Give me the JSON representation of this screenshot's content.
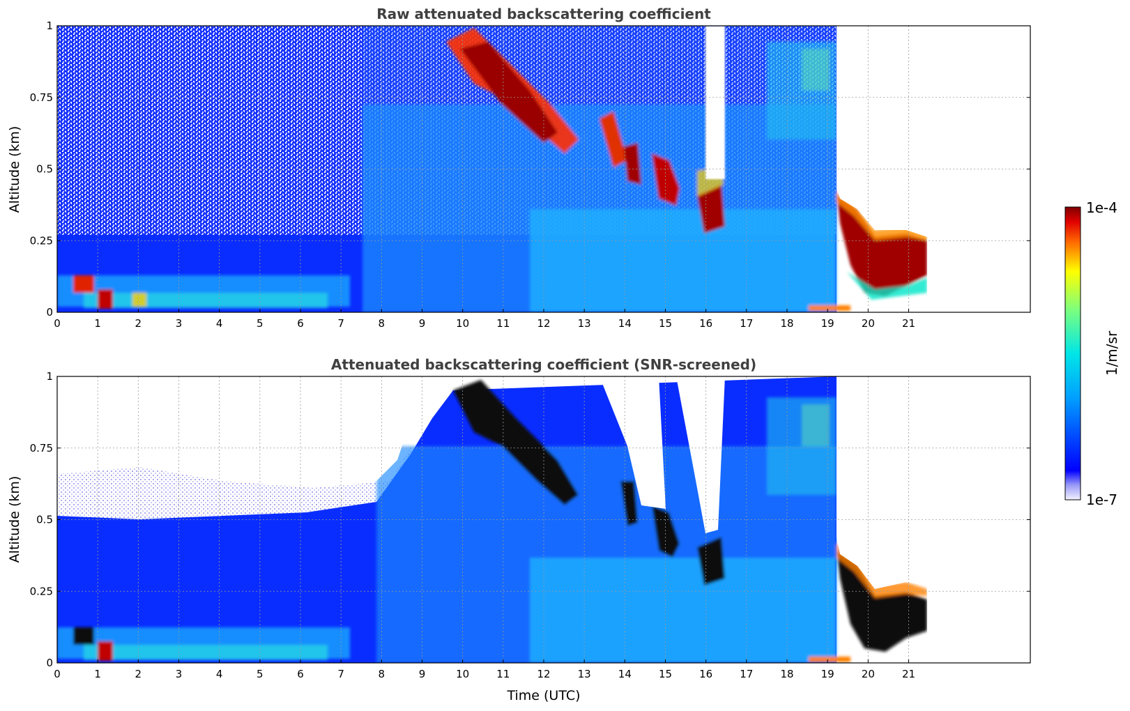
{
  "chart_data": [
    {
      "type": "heatmap",
      "title": "Raw attenuated backscattering coefficient",
      "xlabel": "",
      "ylabel": "Altitude (km)",
      "xlim": [
        0,
        24
      ],
      "ylim": [
        0,
        1
      ],
      "x_ticks": [
        "0",
        "1",
        "2",
        "3",
        "4",
        "5",
        "6",
        "7",
        "8",
        "9",
        "10",
        "11",
        "12",
        "13",
        "14",
        "15",
        "16",
        "17",
        "18",
        "19",
        "20",
        "21"
      ],
      "y_ticks": [
        "0",
        "0.25",
        "0.5",
        "0.75",
        "1"
      ],
      "grid": true,
      "data_extent_hours": [
        0,
        21.5
      ],
      "features": [
        {
          "label": "noise-dominated upper region",
          "x": [
            0,
            8.5
          ],
          "y": [
            0.3,
            1.0
          ],
          "level": "low / noisy"
        },
        {
          "label": "boundary layer",
          "x": [
            0,
            8.5
          ],
          "y": [
            0.0,
            0.3
          ],
          "level": "moderate"
        },
        {
          "label": "cloud band (descending)",
          "x": [
            9.7,
            12.5
          ],
          "y": [
            0.55,
            1.0
          ],
          "level": "high"
        },
        {
          "label": "cloud patches",
          "x": [
            13.9,
            16.5
          ],
          "y": [
            0.27,
            0.55
          ],
          "level": "high"
        },
        {
          "label": "cloud base",
          "x": [
            19.4,
            21.5
          ],
          "y": [
            0.05,
            0.3
          ],
          "level": "very high"
        },
        {
          "label": "no signal",
          "x": [
            19.4,
            21.5
          ],
          "y": [
            0.3,
            1.0
          ],
          "level": "none"
        }
      ]
    },
    {
      "type": "heatmap",
      "title": "Attenuated backscattering coefficient (SNR-screened)",
      "xlabel": "Time (UTC)",
      "ylabel": "Altitude (km)",
      "xlim": [
        0,
        24
      ],
      "ylim": [
        0,
        1
      ],
      "x_ticks": [
        "0",
        "1",
        "2",
        "3",
        "4",
        "5",
        "6",
        "7",
        "8",
        "9",
        "10",
        "11",
        "12",
        "13",
        "14",
        "15",
        "16",
        "17",
        "18",
        "19",
        "20",
        "21"
      ],
      "y_ticks": [
        "0",
        "0.25",
        "0.5",
        "0.75",
        "1"
      ],
      "grid": true,
      "data_extent_hours": [
        0,
        21.5
      ],
      "features": [
        {
          "label": "screened out (white)",
          "x": [
            0,
            8.7
          ],
          "y": [
            0.5,
            1.0
          ],
          "level": "none"
        },
        {
          "label": "boundary layer",
          "x": [
            0,
            8.5
          ],
          "y": [
            0.0,
            0.5
          ],
          "level": "moderate"
        },
        {
          "label": "cloud band (saturated, black)",
          "x": [
            9.7,
            12.5
          ],
          "y": [
            0.55,
            1.0
          ],
          "level": "saturated"
        },
        {
          "label": "cloud base (saturated, black)",
          "x": [
            19.4,
            21.5
          ],
          "y": [
            0.05,
            0.3
          ],
          "level": "saturated"
        }
      ]
    }
  ],
  "colorbar": {
    "label": "1/m/sr",
    "max_label": "1e-4",
    "min_label": "1e-7",
    "scale": "log",
    "colormap": "jet"
  }
}
